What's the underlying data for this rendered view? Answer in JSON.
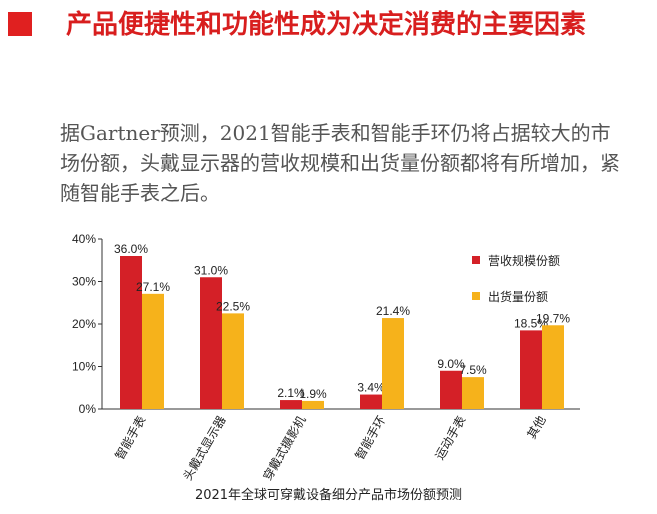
{
  "slide": {
    "title": "产品便捷性和功能性成为决定消费的主要因素",
    "body": "据Gartner预测，2021智能手表和智能手环仍将占据较大的市场份额，头戴显示器的营收规模和出货量份额都将有所增加，紧随智能手表之后。",
    "accent_color": "#e02020"
  },
  "chart_data": {
    "type": "bar",
    "title": "2021年全球可穿戴设备细分产品市场份额预测",
    "xlabel": "",
    "ylabel": "",
    "ylim": [
      0,
      40
    ],
    "yticks": [
      "0%",
      "10%",
      "20%",
      "30%",
      "40%"
    ],
    "categories": [
      "智能手表",
      "头戴式显示器",
      "穿戴式摄影机",
      "智能手环",
      "运动手表",
      "其他"
    ],
    "series": [
      {
        "name": "营收规模份额",
        "color": "#d42027",
        "values": [
          36.0,
          31.0,
          2.1,
          3.4,
          9.0,
          18.5
        ],
        "labels": [
          "36.0%",
          "31.0%",
          "2.1%",
          "3.4%",
          "9.0%",
          "18.5%"
        ]
      },
      {
        "name": "出货量份额",
        "color": "#f6b21b",
        "values": [
          27.1,
          22.5,
          1.9,
          21.4,
          7.5,
          19.7
        ],
        "labels": [
          "27.1%",
          "22.5%",
          "1.9%",
          "21.4%",
          "7.5%",
          "19.7%"
        ]
      }
    ],
    "legend_position": "top-right",
    "grid": false
  }
}
